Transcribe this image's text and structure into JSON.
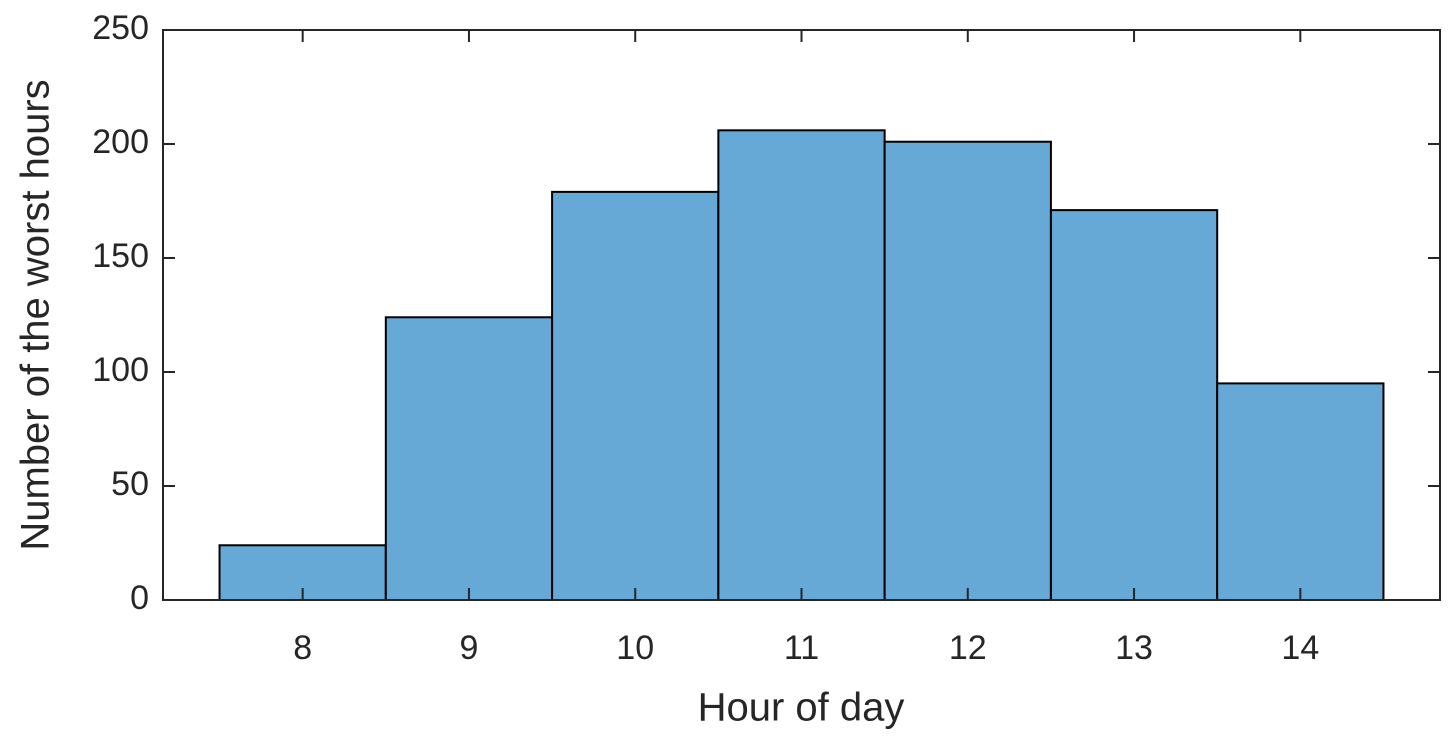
{
  "chart_data": {
    "type": "histogram",
    "xlabel": "Hour of day",
    "ylabel": "Number of the worst hours",
    "bins": [
      7.5,
      8.5,
      9.5,
      10.5,
      11.5,
      12.5,
      13.5,
      14.5
    ],
    "counts": [
      24,
      124,
      179,
      206,
      201,
      171,
      95
    ],
    "color": "#66a9d6",
    "edgecolor": "#000000",
    "xlim": [
      7.16,
      14.84
    ],
    "xticks": [
      8,
      9,
      10,
      11,
      12,
      13,
      14
    ],
    "ylim": [
      0,
      250
    ],
    "yticks": [
      0,
      50,
      100,
      150,
      200,
      250
    ],
    "grid": false
  }
}
